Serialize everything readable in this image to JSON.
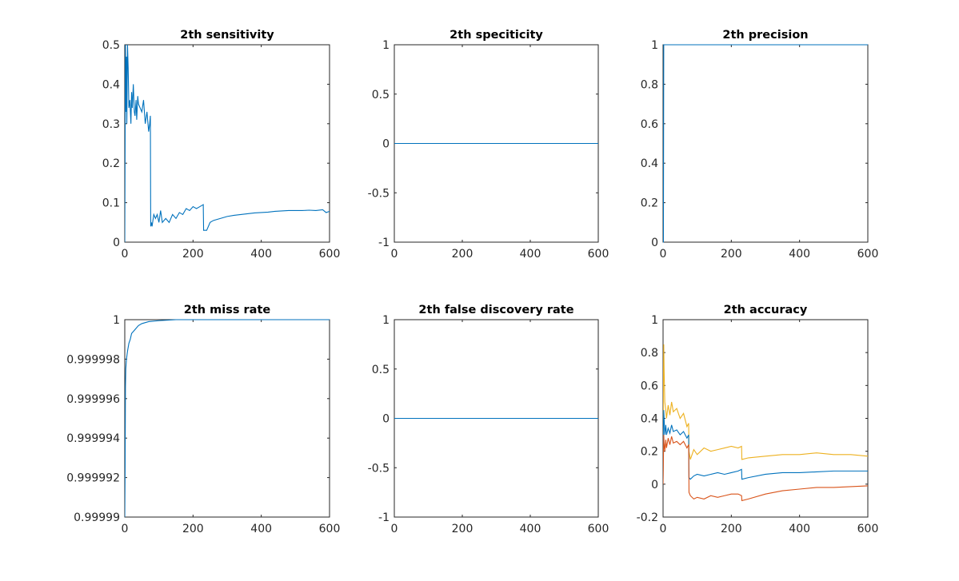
{
  "chart_data": [
    {
      "type": "line",
      "title": "2th sensitivity",
      "xlim": [
        0,
        600
      ],
      "ylim": [
        0,
        0.5
      ],
      "xticks": [
        0,
        200,
        400,
        600
      ],
      "yticks": [
        0,
        0.1,
        0.2,
        0.3,
        0.4,
        0.5
      ],
      "xtick_labels": [
        "0",
        "200",
        "400",
        "600"
      ],
      "ytick_labels": [
        "0",
        "0.1",
        "0.2",
        "0.3",
        "0.4",
        "0.5"
      ],
      "series": [
        {
          "color": "#0072bd",
          "x": [
            0,
            1,
            2,
            3,
            4,
            5,
            6,
            8,
            10,
            12,
            15,
            18,
            20,
            22,
            25,
            28,
            30,
            33,
            35,
            38,
            40,
            45,
            50,
            55,
            60,
            65,
            70,
            73,
            75,
            76,
            78,
            80,
            85,
            90,
            95,
            100,
            105,
            110,
            120,
            130,
            140,
            150,
            160,
            170,
            180,
            190,
            200,
            210,
            220,
            230,
            231,
            240,
            250,
            260,
            280,
            300,
            320,
            340,
            360,
            380,
            400,
            420,
            440,
            460,
            480,
            500,
            520,
            540,
            560,
            580,
            590,
            600
          ],
          "values": [
            0.0,
            0.25,
            0.5,
            0.33,
            0.4,
            0.47,
            0.3,
            0.5,
            0.44,
            0.34,
            0.36,
            0.3,
            0.38,
            0.34,
            0.4,
            0.33,
            0.32,
            0.36,
            0.31,
            0.37,
            0.35,
            0.34,
            0.33,
            0.36,
            0.3,
            0.33,
            0.28,
            0.3,
            0.32,
            0.04,
            0.05,
            0.04,
            0.07,
            0.06,
            0.07,
            0.05,
            0.08,
            0.05,
            0.06,
            0.05,
            0.07,
            0.06,
            0.075,
            0.07,
            0.085,
            0.08,
            0.09,
            0.085,
            0.09,
            0.095,
            0.03,
            0.03,
            0.05,
            0.055,
            0.06,
            0.065,
            0.068,
            0.07,
            0.072,
            0.074,
            0.075,
            0.076,
            0.078,
            0.079,
            0.08,
            0.08,
            0.08,
            0.081,
            0.08,
            0.082,
            0.075,
            0.078
          ]
        }
      ]
    },
    {
      "type": "line",
      "title": "2th speciticity",
      "xlim": [
        0,
        600
      ],
      "ylim": [
        -1,
        1
      ],
      "xticks": [
        0,
        200,
        400,
        600
      ],
      "yticks": [
        -1,
        -0.5,
        0,
        0.5,
        1
      ],
      "xtick_labels": [
        "0",
        "200",
        "400",
        "600"
      ],
      "ytick_labels": [
        "-1",
        "-0.5",
        "0",
        "0.5",
        "1"
      ],
      "series": [
        {
          "color": "#0072bd",
          "x": [
            0,
            600
          ],
          "values": [
            0,
            0
          ]
        }
      ]
    },
    {
      "type": "line",
      "title": "2th precision",
      "xlim": [
        0,
        600
      ],
      "ylim": [
        0,
        1
      ],
      "xticks": [
        0,
        200,
        400,
        600
      ],
      "yticks": [
        0,
        0.2,
        0.4,
        0.6,
        0.8,
        1
      ],
      "xtick_labels": [
        "0",
        "200",
        "400",
        "600"
      ],
      "ytick_labels": [
        "0",
        "0.2",
        "0.4",
        "0.6",
        "0.8",
        "1"
      ],
      "series": [
        {
          "color": "#0072bd",
          "x": [
            0,
            1,
            2,
            600
          ],
          "values": [
            0,
            0,
            1,
            1
          ]
        }
      ]
    },
    {
      "type": "line",
      "title": "2th miss rate",
      "xlim": [
        0,
        600
      ],
      "ylim": [
        0.99999,
        1
      ],
      "xticks": [
        0,
        200,
        400,
        600
      ],
      "yticks": [
        0.99999,
        0.999992,
        0.999994,
        0.999996,
        0.999998,
        1
      ],
      "xtick_labels": [
        "0",
        "200",
        "400",
        "600"
      ],
      "ytick_labels": [
        "0.99999",
        "0.999992",
        "0.999994",
        "0.999996",
        "0.999998",
        "1"
      ],
      "series": [
        {
          "color": "#0072bd",
          "x": [
            0,
            1,
            2,
            3,
            5,
            8,
            12,
            16,
            20,
            30,
            40,
            50,
            70,
            100,
            150,
            200,
            260,
            600
          ],
          "values": [
            0.99999,
            0.9999925,
            0.9999966,
            0.9999975,
            0.999998,
            0.9999984,
            0.9999988,
            0.999999,
            0.9999993,
            0.9999995,
            0.9999997,
            0.9999998,
            0.9999999,
            0.99999995,
            1.0,
            1.0,
            1.0,
            1.0
          ]
        }
      ]
    },
    {
      "type": "line",
      "title": "2th false discovery rate",
      "xlim": [
        0,
        600
      ],
      "ylim": [
        -1,
        1
      ],
      "xticks": [
        0,
        200,
        400,
        600
      ],
      "yticks": [
        -1,
        -0.5,
        0,
        0.5,
        1
      ],
      "xtick_labels": [
        "0",
        "200",
        "400",
        "600"
      ],
      "ytick_labels": [
        "-1",
        "-0.5",
        "0",
        "0.5",
        "1"
      ],
      "series": [
        {
          "color": "#0072bd",
          "x": [
            0,
            600
          ],
          "values": [
            0,
            0
          ]
        }
      ]
    },
    {
      "type": "line",
      "title": "2th accuracy",
      "xlim": [
        0,
        600
      ],
      "ylim": [
        -0.2,
        1
      ],
      "xticks": [
        0,
        200,
        400,
        600
      ],
      "yticks": [
        -0.2,
        0,
        0.2,
        0.4,
        0.6,
        0.8,
        1
      ],
      "xtick_labels": [
        "0",
        "200",
        "400",
        "600"
      ],
      "ytick_labels": [
        "-0.2",
        "0",
        "0.2",
        "0.4",
        "0.6",
        "0.8",
        "1"
      ],
      "series": [
        {
          "color": "#edb120",
          "x": [
            0,
            1,
            2,
            3,
            5,
            8,
            10,
            15,
            20,
            25,
            30,
            40,
            50,
            60,
            70,
            75,
            76,
            80,
            90,
            100,
            120,
            140,
            160,
            180,
            200,
            220,
            230,
            231,
            250,
            300,
            350,
            400,
            450,
            500,
            550,
            600
          ],
          "values": [
            0.05,
            0.6,
            0.85,
            0.7,
            0.5,
            0.45,
            0.4,
            0.48,
            0.42,
            0.5,
            0.44,
            0.46,
            0.4,
            0.43,
            0.35,
            0.37,
            0.2,
            0.15,
            0.21,
            0.18,
            0.22,
            0.2,
            0.21,
            0.22,
            0.23,
            0.22,
            0.23,
            0.15,
            0.16,
            0.17,
            0.18,
            0.18,
            0.19,
            0.18,
            0.18,
            0.17
          ]
        },
        {
          "color": "#0072bd",
          "x": [
            0,
            1,
            2,
            3,
            5,
            8,
            10,
            15,
            20,
            25,
            30,
            40,
            50,
            60,
            70,
            75,
            76,
            80,
            90,
            100,
            120,
            140,
            160,
            180,
            200,
            220,
            230,
            231,
            250,
            300,
            350,
            400,
            450,
            500,
            550,
            600
          ],
          "values": [
            0.03,
            0.35,
            0.45,
            0.4,
            0.3,
            0.36,
            0.3,
            0.34,
            0.31,
            0.36,
            0.32,
            0.33,
            0.3,
            0.32,
            0.28,
            0.3,
            0.04,
            0.03,
            0.05,
            0.06,
            0.05,
            0.06,
            0.07,
            0.06,
            0.07,
            0.08,
            0.09,
            0.03,
            0.04,
            0.06,
            0.07,
            0.07,
            0.075,
            0.08,
            0.08,
            0.08
          ]
        },
        {
          "color": "#d95319",
          "x": [
            0,
            1,
            2,
            3,
            5,
            8,
            10,
            15,
            20,
            25,
            30,
            40,
            50,
            60,
            70,
            75,
            76,
            80,
            90,
            100,
            120,
            140,
            160,
            180,
            200,
            220,
            230,
            231,
            250,
            300,
            350,
            400,
            450,
            500,
            550,
            600
          ],
          "values": [
            0.0,
            0.15,
            0.3,
            0.25,
            0.2,
            0.27,
            0.22,
            0.28,
            0.24,
            0.29,
            0.25,
            0.26,
            0.24,
            0.26,
            0.22,
            0.24,
            -0.05,
            -0.07,
            -0.09,
            -0.08,
            -0.09,
            -0.07,
            -0.08,
            -0.07,
            -0.06,
            -0.06,
            -0.07,
            -0.1,
            -0.09,
            -0.06,
            -0.04,
            -0.03,
            -0.02,
            -0.02,
            -0.015,
            -0.01
          ]
        }
      ]
    }
  ]
}
